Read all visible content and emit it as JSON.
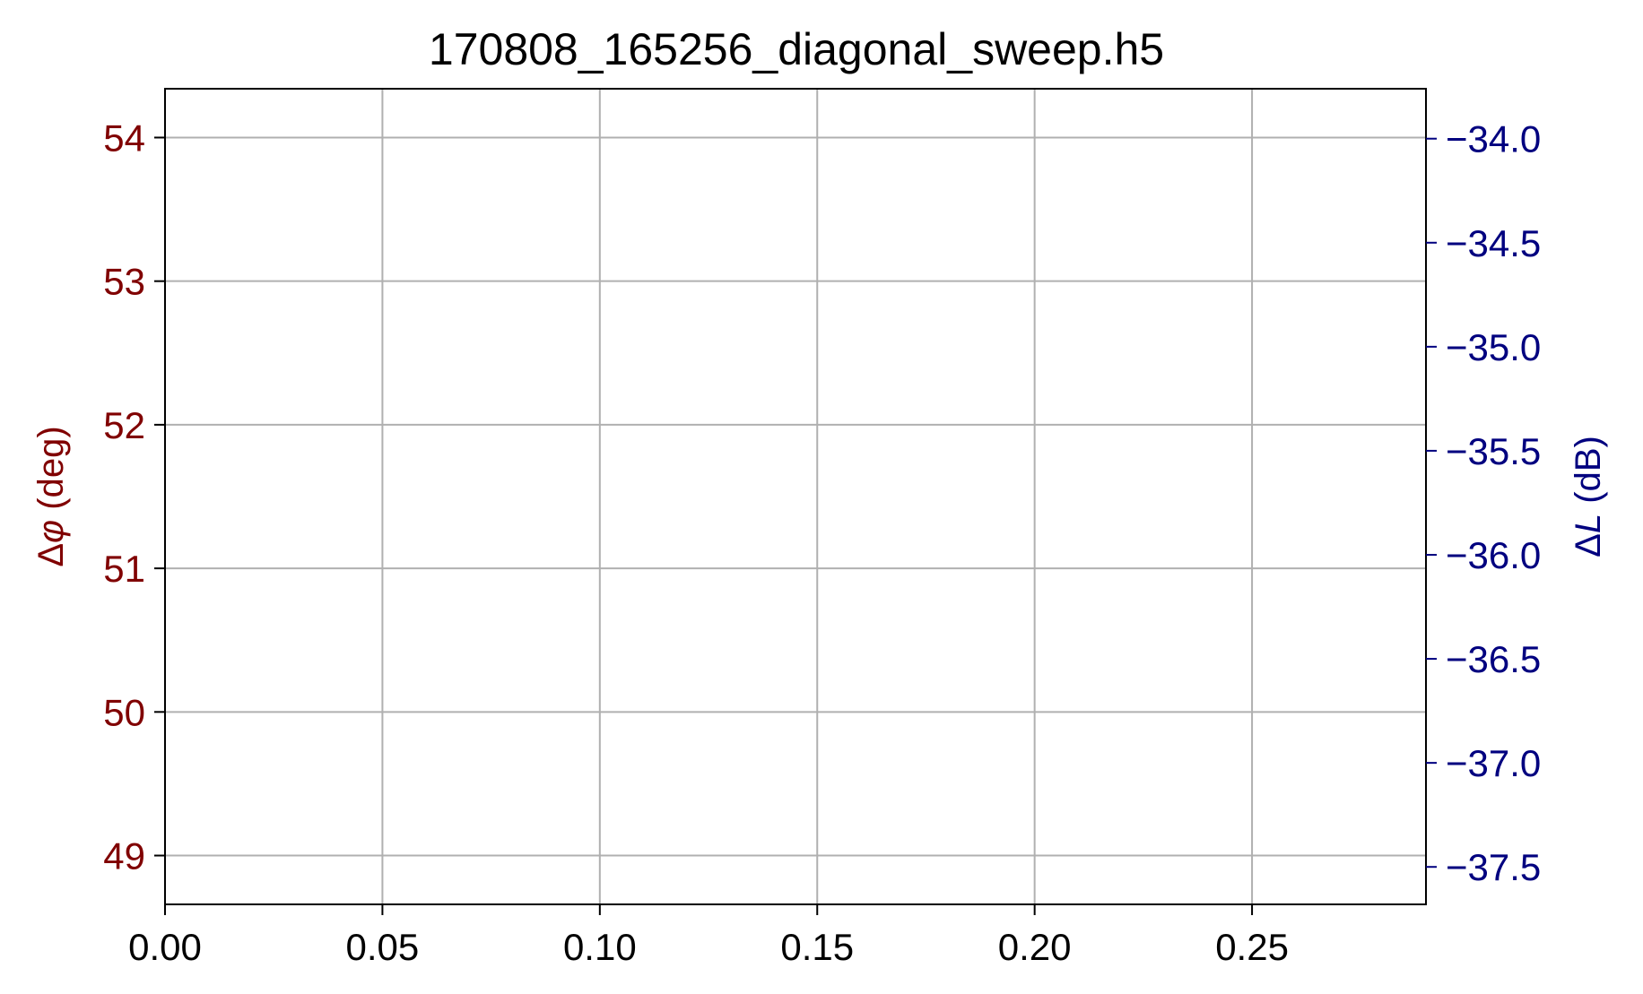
{
  "chart_data": {
    "type": "line",
    "title": "170808_165256_diagonal_sweep.h5",
    "xlabel": "",
    "xlim": [
      0.0,
      0.29
    ],
    "xticks": [
      0.0,
      0.05,
      0.1,
      0.15,
      0.2,
      0.25
    ],
    "xtick_labels": [
      "0.00",
      "0.05",
      "0.10",
      "0.15",
      "0.20",
      "0.25"
    ],
    "y_left": {
      "label": "Δφ (deg)",
      "label_symbol": "Δ",
      "label_var": "φ",
      "label_unit": " (deg)",
      "color": "#800000",
      "ylim": [
        48.66,
        54.34
      ],
      "ticks": [
        49,
        50,
        51,
        52,
        53,
        54
      ],
      "tick_labels": [
        "49",
        "50",
        "51",
        "52",
        "53",
        "54"
      ]
    },
    "y_right": {
      "label": "ΔL (dB)",
      "label_symbol": "Δ",
      "label_var": "L",
      "label_unit": " (dB)",
      "color": "#00007f",
      "ylim": [
        -37.68,
        -33.76
      ],
      "ticks": [
        -37.5,
        -37.0,
        -36.5,
        -36.0,
        -35.5,
        -35.0,
        -34.5,
        -34.0
      ],
      "tick_labels": [
        "−37.5",
        "−37.0",
        "−36.5",
        "−36.0",
        "−35.5",
        "−35.0",
        "−34.5",
        "−34.0"
      ]
    },
    "grid": true,
    "grid_color": "#b0b0b0",
    "series": []
  }
}
